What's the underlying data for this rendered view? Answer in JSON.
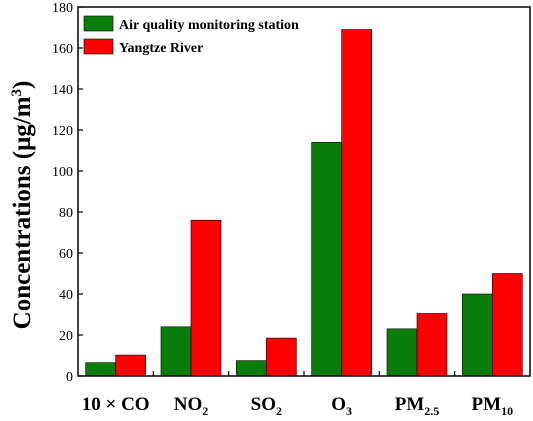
{
  "chart_data": {
    "type": "bar",
    "categories": [
      {
        "id": "co",
        "base": "10 × CO",
        "sub": ""
      },
      {
        "id": "no2",
        "base": "NO",
        "sub": "2"
      },
      {
        "id": "so2",
        "base": "SO",
        "sub": "2"
      },
      {
        "id": "o3",
        "base": "O",
        "sub": "3"
      },
      {
        "id": "pm25",
        "base": "PM",
        "sub": "2.5"
      },
      {
        "id": "pm10",
        "base": "PM",
        "sub": "10"
      }
    ],
    "series": [
      {
        "name": "Air quality monitoring station",
        "color": "#0b7d0b",
        "values": [
          6.5,
          24,
          7.5,
          114,
          23,
          40
        ]
      },
      {
        "name": "Yangtze River",
        "color": "#ff0000",
        "values": [
          10.2,
          76,
          18.5,
          169,
          30.5,
          50
        ]
      }
    ],
    "ylabel": {
      "base": "Concentrations (μg/m",
      "sup": "3",
      "close": ")"
    },
    "ylim": [
      0,
      180
    ],
    "yticks": [
      0,
      20,
      40,
      60,
      80,
      100,
      120,
      140,
      160,
      180
    ],
    "legend_position": "top-left",
    "grid": false
  }
}
